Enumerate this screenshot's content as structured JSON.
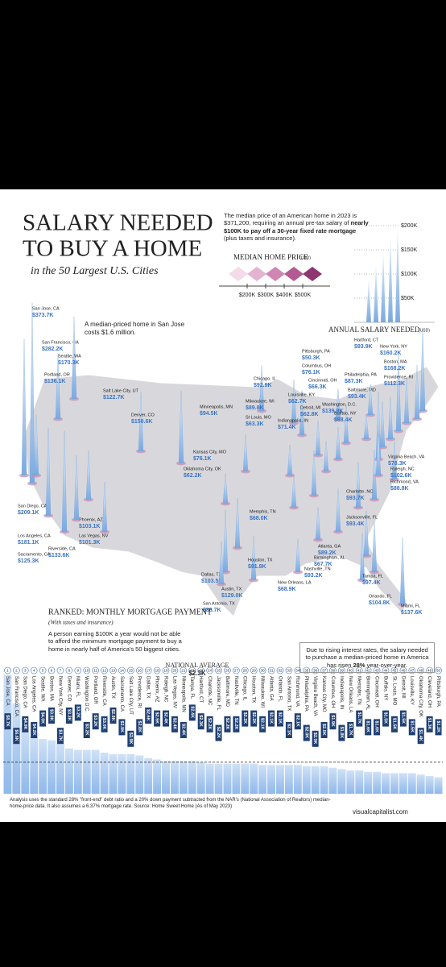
{
  "header": {
    "title_lines": [
      "SALARY NEEDED",
      "TO BUY A HOME"
    ],
    "subtitle": "in the 50 Largest U.S. Cities",
    "intro": [
      "The median price of an American home in 2023 is $371,200, requiring an annual pre-tax salary of ",
      "nearly $100K to pay off a 30-year fixed rate mortgage",
      " (plus taxes and insurance)."
    ]
  },
  "chart_data": [
    {
      "type": "spike-map",
      "title": "ANNUAL SALARY NEEDED",
      "unit": "(USD)",
      "color": "#8fb8ea",
      "annotation": "A median-priced home in San Jose costs $1.6 million.",
      "yticks": [
        {
          "value": 50,
          "label": "$50K"
        },
        {
          "value": 100,
          "label": "$100K"
        },
        {
          "value": 150,
          "label": "$150K"
        },
        {
          "value": 200,
          "label": "$200K"
        }
      ],
      "color_legend": {
        "title": "MEDIAN HOME PRICE",
        "unit": "(USD)",
        "colors": [
          "#f3dbe9",
          "#e3b4d0",
          "#cf86b3",
          "#b45a92",
          "#8e3670"
        ],
        "ticks": [
          {
            "value": 200,
            "label": "$200K"
          },
          {
            "value": 300,
            "label": "$300K"
          },
          {
            "value": 400,
            "label": "$400K"
          },
          {
            "value": 500,
            "label": "$500K"
          }
        ]
      },
      "categories": [
        "San Jose, CA",
        "San Francisco, CA",
        "Seattle, WA",
        "Portland, OR",
        "Salt Lake City, UT",
        "Denver, CO",
        "Minneapolis, MN",
        "Chicago, IL",
        "Milwaukee, WI",
        "St Louis, MO",
        "Pittsburgh, PA",
        "Columbus, OH",
        "Cincinnati, OH",
        "Louisville, KY",
        "Detroit, MI",
        "Indianapolis, IN",
        "Washington, D.C.",
        "New York, NY",
        "Hartford, CT",
        "Boston, MA",
        "Philadelphia, PA",
        "Baltimore, MD",
        "Providence, RI",
        "Buffalo, NY",
        "Kansas City, MO",
        "Oklahoma City, OK",
        "Memphis, TN",
        "Virginia Beach, VA",
        "Raleigh, NC",
        "Richmond, VA",
        "Charlotte, NC",
        "Jacksonville, FL",
        "Atlanta, GA",
        "Birmingham, AL",
        "Nashville, TN",
        "New Orleans, LA",
        "Tampa, FL",
        "Orlando, FL",
        "Miami, FL",
        "Houston, TX",
        "Dallas, TX",
        "Austin, TX",
        "San Antonio, TX",
        "San Diego, CA",
        "Los Angeles, CA",
        "Sacramento, CA",
        "Phoenix, AZ",
        "Las Vegas, NV",
        "Riverside, CA"
      ],
      "values": [
        373.7,
        282.2,
        170.3,
        136.1,
        122.7,
        150.6,
        94.5,
        92.9,
        89.8,
        63.3,
        50.3,
        76.1,
        66.3,
        62.7,
        62.8,
        71.4,
        139.9,
        160.2,
        93.9,
        168.2,
        87.3,
        93.4,
        112.3,
        63.4,
        76.1,
        62.2,
        68.0,
        78.3,
        102.6,
        88.8,
        93.7,
        93.4,
        89.2,
        67.7,
        93.2,
        68.9,
        97.4,
        104.8,
        137.6,
        91.8,
        103.5,
        129.0,
        88.7,
        209.1,
        181.1,
        125.3,
        103.1,
        101.3,
        133.6
      ],
      "value_labels": [
        "$373.7K",
        "$282.2K",
        "$170.3K",
        "$136.1K",
        "$122.7K",
        "$150.6K",
        "$94.5K",
        "$92.9K",
        "$89.8K",
        "$63.3K",
        "$50.3K",
        "$76.1K",
        "$66.3K",
        "$62.7K",
        "$62.8K",
        "$71.4K",
        "$139.9K",
        "$160.2K",
        "$93.9K",
        "$168.2K",
        "$87.3K",
        "$93.4K",
        "$112.3K",
        "$63.4K",
        "$76.1K",
        "$62.2K",
        "$68.0K",
        "$78.3K",
        "$102.6K",
        "$88.8K",
        "$93.7K",
        "$93.4K",
        "$89.2K",
        "$67.7K",
        "$93.2K",
        "$68.9K",
        "$97.4K",
        "$104.8K",
        "$137.6K",
        "$91.8K",
        "$103.5K",
        "$129.0K",
        "$88.7K",
        "$209.1K",
        "$181.1K",
        "$125.3K",
        "$103.1K",
        "$101.3K",
        "$133.6K"
      ]
    },
    {
      "type": "bar",
      "title": "RANKED: MONTHLY MORTGAGE PAYMENT",
      "subtitle": "(With taxes and insurance)",
      "color": "#a9c9ee",
      "note": "A person earning $100K a year would not be able to afford the minimum mortgage payment to buy a home in nearly half of America's 50 biggest cities.",
      "reference": {
        "label": "NATIONAL AVERAGE",
        "value": 2.3,
        "value_label": "$2.3K"
      },
      "callout": [
        "Due to rising interest rates, the salary needed to purchase a median-priced home in America has risen ",
        "28%",
        " year-over-year."
      ],
      "ranks": [
        1,
        2,
        3,
        4,
        5,
        6,
        7,
        8,
        9,
        10,
        11,
        12,
        13,
        14,
        15,
        16,
        17,
        18,
        19,
        20,
        21,
        22,
        23,
        24,
        25,
        26,
        27,
        28,
        29,
        30,
        31,
        32,
        33,
        34,
        35,
        36,
        37,
        38,
        39,
        40,
        41,
        42,
        43,
        44,
        45,
        46,
        47,
        48,
        49,
        50
      ],
      "categories": [
        "San Jose, CA",
        "San Francisco, CA",
        "San Diego, CA",
        "Los Angeles, CA",
        "Seattle, WA",
        "Boston, MA",
        "New York City, NY",
        "Denver, CO",
        "Miami, FL",
        "Washington D.C.",
        "Portland, OR",
        "Riverside, CA",
        "Austin, TX",
        "Sacramento, CA",
        "Salt Lake City, UT",
        "Providence, RI",
        "Dallas, TX",
        "Phoenix, AZ",
        "Raleigh, NC",
        "Las Vegas, NV",
        "Minneapolis, MN",
        "Tampa, FL",
        "Hartford, CT",
        "Charlotte, NC",
        "Jacksonville, FL",
        "Baltimore, MD",
        "Nashville, TN",
        "Chicago, IL",
        "Houston, TX",
        "Milwaukee, WI",
        "Atlanta, GA",
        "Orlando, FL",
        "San Antonio, TX",
        "Richmond, VA",
        "Philadelphia, PA",
        "Virginia Beach, VA",
        "Kansas City, MO",
        "Columbus, OH",
        "Indianapolis, IN",
        "New Orleans, LA",
        "Memphis, TN",
        "Birmingham, AL",
        "Cincinnati, OH",
        "Buffalo, NY",
        "St. Louis, MO",
        "Detroit, MI",
        "Louisville, KY",
        "Oklahoma City, OK",
        "Cleveland, OH",
        "Pittsburgh, PA"
      ],
      "values": [
        8.7,
        6.6,
        4.9,
        4.2,
        4.0,
        3.9,
        3.7,
        3.3,
        3.2,
        3.2,
        3.2,
        3.0,
        2.9,
        2.9,
        2.9,
        2.8,
        2.6,
        2.5,
        2.4,
        2.4,
        2.4,
        2.4,
        2.3,
        2.2,
        2.2,
        2.2,
        2.2,
        2.2,
        2.2,
        2.1,
        2.1,
        2.1,
        2.1,
        2.1,
        2.0,
        2.0,
        2.0,
        1.9,
        1.8,
        1.7,
        1.7,
        1.6,
        1.6,
        1.5,
        1.5,
        1.5,
        1.5,
        1.4,
        1.3,
        1.2
      ],
      "value_labels": [
        "$8.7K",
        "$6.6K",
        "$4.9K",
        "$4.2K",
        "$4.0K",
        "$3.9K",
        "$3.7K",
        "$3.3K",
        "$3.2K",
        "$3.2K",
        "$3.2K",
        "$3.0K",
        "$2.9K",
        "$2.9K",
        "$2.9K",
        "$2.8K",
        "$2.6K",
        "$2.5K",
        "$2.4K",
        "$2.4K",
        "$2.4K",
        "$2.4K",
        "$2.3K",
        "$2.2K",
        "$2.2K",
        "$2.2K",
        "$2.2K",
        "$2.2K",
        "$2.2K",
        "$2.1K",
        "$2.1K",
        "$2.1K",
        "$2.1K",
        "$2.1K",
        "$2.0K",
        "$2.0K",
        "$2.0K",
        "$1.9K",
        "$1.8K",
        "$1.7K",
        "$1.7K",
        "$1.6K",
        "$1.6K",
        "$1.5K",
        "$1.5K",
        "$1.5K",
        "$1.5K",
        "$1.4K",
        "$1.3K",
        "$1.2K"
      ]
    }
  ],
  "footer": {
    "note": "Analysis uses the standard 28% \"front-end\" debt ratio and a 20% down payment subtracted from the NAR's (National Association of Realtors) median-home-price data. It also assumes a 6.37% mortgage rate. Source: Home Sweet Home (As of May 2023)",
    "brand": "visualcapitalist.com"
  }
}
